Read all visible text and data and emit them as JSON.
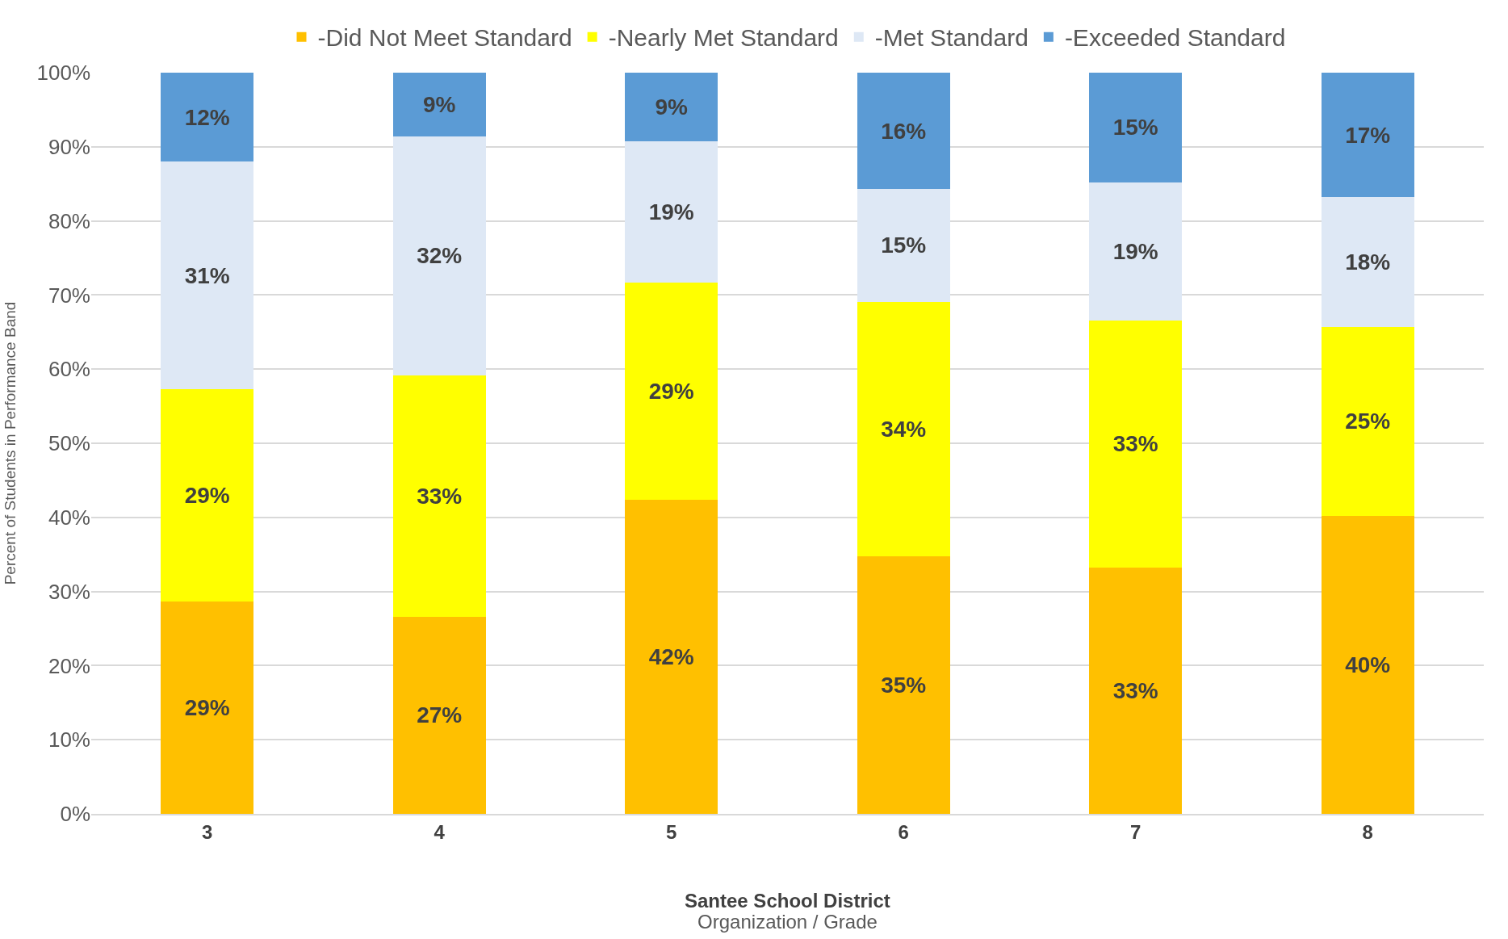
{
  "chart_data": {
    "type": "bar",
    "stacked": true,
    "xlabel": "Organization / Grade",
    "ylabel": "Percent of Students in Performance Band",
    "categories": [
      "3",
      "4",
      "5",
      "6",
      "7",
      "8"
    ],
    "series": [
      {
        "name": "-Did Not Meet Standard",
        "color": "#ffc000",
        "values": [
          28.6,
          26.6,
          42.4,
          34.8,
          33.2,
          40.2
        ],
        "value_labels": [
          "29%",
          "27%",
          "42%",
          "35%",
          "33%",
          "40%"
        ]
      },
      {
        "name": "-Nearly Met Standard",
        "color": "#ffff00",
        "values": [
          28.7,
          32.6,
          29.3,
          34.3,
          33.4,
          25.5
        ],
        "value_labels": [
          "29%",
          "33%",
          "29%",
          "34%",
          "33%",
          "25%"
        ]
      },
      {
        "name": "-Met Standard",
        "color": "#dee8f5",
        "values": [
          30.7,
          32.2,
          19.0,
          15.2,
          18.6,
          17.5
        ],
        "value_labels": [
          "31%",
          "32%",
          "19%",
          "15%",
          "19%",
          "18%"
        ]
      },
      {
        "name": "-Exceeded Standard",
        "color": "#5b9bd5",
        "values": [
          12.0,
          8.6,
          9.3,
          15.7,
          14.8,
          16.8
        ],
        "value_labels": [
          "12%",
          "9%",
          "9%",
          "16%",
          "15%",
          "17%"
        ]
      }
    ],
    "ylim": [
      0,
      100
    ],
    "yticks": [
      {
        "value": 0,
        "label": "0%"
      },
      {
        "value": 10,
        "label": "10%"
      },
      {
        "value": 20,
        "label": "20%"
      },
      {
        "value": 30,
        "label": "30%"
      },
      {
        "value": 40,
        "label": "40%"
      },
      {
        "value": 50,
        "label": "50%"
      },
      {
        "value": 60,
        "label": "60%"
      },
      {
        "value": 70,
        "label": "70%"
      },
      {
        "value": 80,
        "label": "80%"
      },
      {
        "value": 90,
        "label": "90%"
      },
      {
        "value": 100,
        "label": "100%"
      }
    ],
    "annotations": [
      "Santee School District"
    ],
    "grid": "y",
    "legend": "top"
  }
}
